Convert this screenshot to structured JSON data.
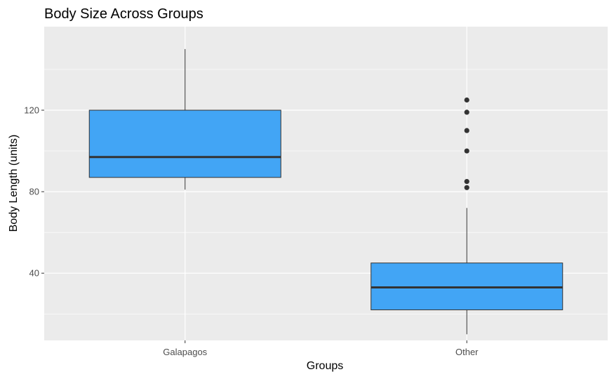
{
  "chart_data": {
    "type": "box",
    "title": "Body Size Across Groups",
    "xlabel": "Groups",
    "ylabel": "Body Length (units)",
    "categories": [
      "Galapagos",
      "Other"
    ],
    "ylim": [
      7,
      161
    ],
    "yticks": [
      40,
      80,
      120
    ],
    "yticks_labels": [
      "40",
      "80",
      "120"
    ],
    "grid": true,
    "legend": "none",
    "colors": {
      "panel_bg": "#ebebeb",
      "grid": "#ffffff",
      "box_fill": "#42a5f5",
      "box_stroke": "#333333",
      "outlier": "#333333"
    },
    "boxes": [
      {
        "category": "Galapagos",
        "min": 81,
        "q1": 87,
        "median": 97,
        "q3": 120,
        "max": 150,
        "outliers": []
      },
      {
        "category": "Other",
        "min": 10,
        "q1": 22,
        "median": 33,
        "q3": 45,
        "max": 72,
        "outliers": [
          82,
          85,
          100,
          110,
          119,
          125
        ]
      }
    ]
  }
}
